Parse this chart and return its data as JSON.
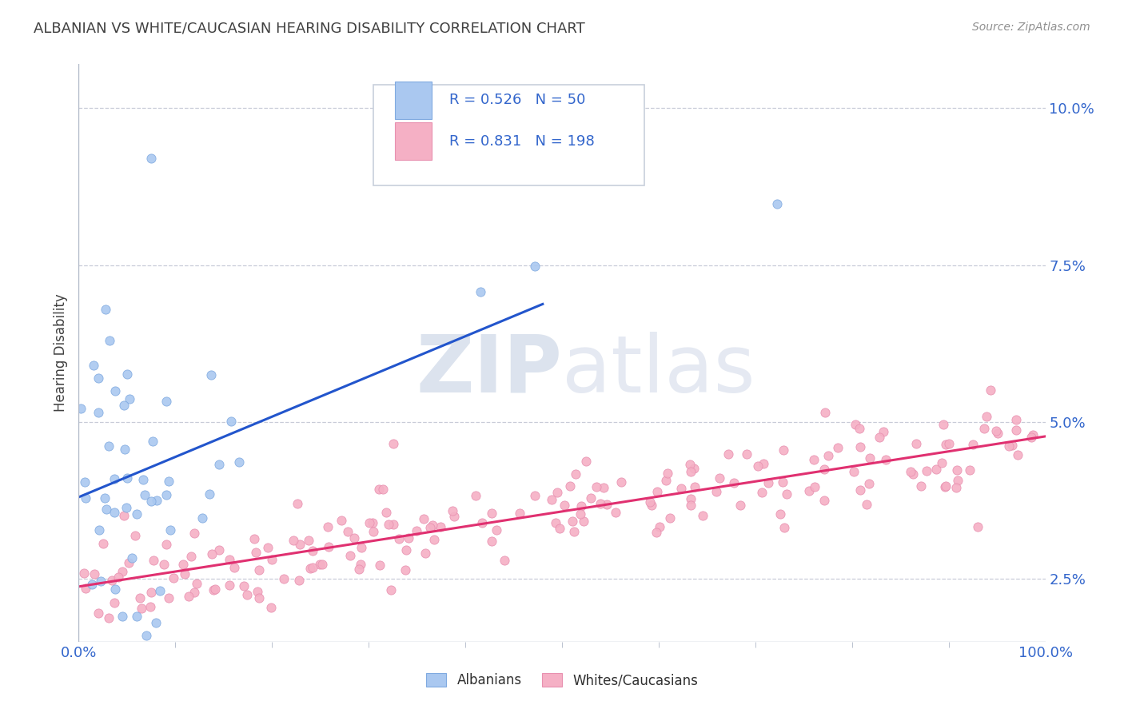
{
  "title": "ALBANIAN VS WHITE/CAUCASIAN HEARING DISABILITY CORRELATION CHART",
  "source_text": "Source: ZipAtlas.com",
  "ylabel": "Hearing Disability",
  "yticks": [
    0.025,
    0.05,
    0.075,
    0.1
  ],
  "ytick_labels": [
    "2.5%",
    "5.0%",
    "7.5%",
    "10.0%"
  ],
  "xtick_labels": [
    "0.0%",
    "100.0%"
  ],
  "xlim": [
    0.0,
    1.0
  ],
  "ylim": [
    0.015,
    0.107
  ],
  "albanian_color": "#aac8f0",
  "albanian_edge_color": "#80aae0",
  "albanian_line_color": "#2255cc",
  "white_color": "#f5b0c5",
  "white_edge_color": "#e890b0",
  "white_line_color": "#e03070",
  "R_albanian": 0.526,
  "N_albanian": 50,
  "R_white": 0.831,
  "N_white": 198,
  "legend_text_color": "#3366cc",
  "watermark_zip": "ZIP",
  "watermark_atlas": "atlas",
  "watermark_color": "#c8d4e8",
  "background_color": "#ffffff",
  "grid_color": "#c8ccd8",
  "title_color": "#404040",
  "axis_label_color": "#3366cc"
}
